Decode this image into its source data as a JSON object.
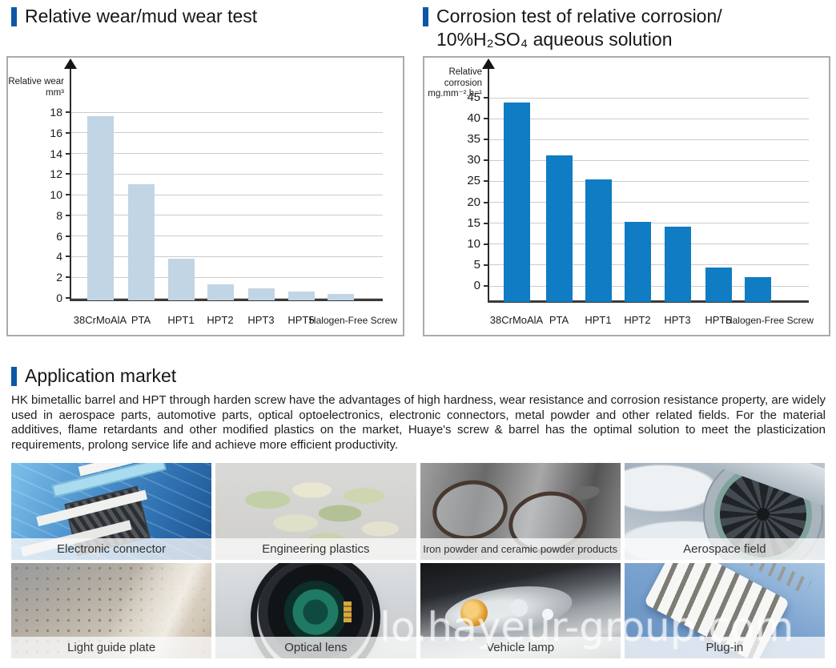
{
  "page": {
    "background": "#ffffff",
    "accent_color": "#0d57a6"
  },
  "headings": {
    "chart1": "Relative wear/mud wear test",
    "chart2_line1": "Corrosion test of relative corrosion/",
    "chart2_line2": "10%H₂SO₄ aqueous solution",
    "application": "Application market"
  },
  "chart_data": [
    {
      "type": "bar",
      "title": "Relative wear/mud wear test",
      "xlabel": "",
      "ylabel": "Relative wear mm³",
      "ylabel_lines": [
        "Relative wear",
        "mm³"
      ],
      "categories": [
        "38CrMoAlA",
        "PTA",
        "HPT1",
        "HPT2",
        "HPT3",
        "HPT5",
        "Halogen-Free Screw"
      ],
      "values": [
        17.6,
        11,
        3.8,
        1.3,
        0.9,
        0.6,
        0.4
      ],
      "ylim": [
        0,
        18
      ],
      "ytick_step": 2,
      "grid": true,
      "legend": "none",
      "bar_color": "#c2d5e5"
    },
    {
      "type": "bar",
      "title": "Corrosion test of relative corrosion/10%H₂SO₄ aqueous solution",
      "xlabel": "",
      "ylabel": "Relative corrosion mg.mm⁻².h⁻¹",
      "ylabel_lines": [
        "Relative corrosion",
        "mg.mm⁻².h⁻¹"
      ],
      "categories": [
        "38CrMoAlA",
        "PTA",
        "HPT1",
        "HPT2",
        "HPT3",
        "HPT5",
        "Halogen-Free Screw"
      ],
      "values": [
        43.8,
        31.2,
        25.5,
        15.4,
        14.2,
        4.4,
        2.1
      ],
      "ylim": [
        0,
        45
      ],
      "ytick_step": 5,
      "grid": true,
      "legend": "none",
      "bar_color": "#0f7cc3"
    }
  ],
  "application": {
    "title": "Application market",
    "paragraph": "HK bimetallic barrel and HPT through harden screw have the advantages of high hardness, wear resistance and corrosion resistance property, are widely used in aerospace parts, automotive parts, optical optoelectronics, electronic connectors, metal powder and other related fields. For the material additives, flame retardants and other modified plastics on the market, Huaye's screw & barrel has the optimal solution to meet the plasticization requirements, prolong service life and achieve more efficient productivity.",
    "tiles": [
      {
        "label": "Electronic connector"
      },
      {
        "label": "Engineering plastics"
      },
      {
        "label": "Iron powder and ceramic powder products"
      },
      {
        "label": "Aerospace field"
      },
      {
        "label": "Light guide plate"
      },
      {
        "label": "Optical lens"
      },
      {
        "label": "Vehicle lamp"
      },
      {
        "label": "Plug-in"
      }
    ]
  },
  "watermark": "lo.hayeur-group.com"
}
